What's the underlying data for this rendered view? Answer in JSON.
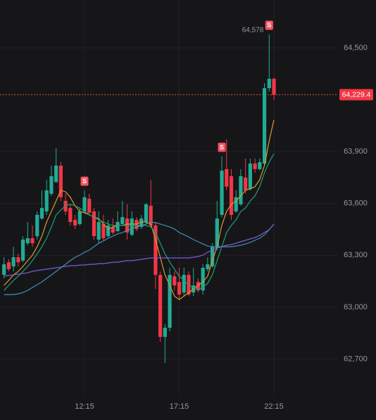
{
  "chart_data": {
    "type": "candlestick",
    "categories": [
      null,
      null,
      null,
      null,
      null,
      null,
      null,
      null,
      null,
      null,
      null,
      null,
      null,
      null,
      null,
      null,
      null,
      "12:15",
      null,
      null,
      null,
      null,
      null,
      null,
      null,
      null,
      null,
      null,
      null,
      null,
      null,
      null,
      null,
      null,
      null,
      null,
      null,
      "17:15",
      null,
      null,
      null,
      null,
      null,
      null,
      null,
      null,
      null,
      null,
      null,
      null,
      null,
      null,
      null,
      null,
      null,
      null,
      null,
      "22:15"
    ],
    "open": [
      63187,
      63260,
      63236,
      63289,
      63269,
      63370,
      63399,
      63411,
      63513,
      63554,
      63656,
      63725,
      63819,
      63615,
      63574,
      63505,
      63481,
      63554,
      63627,
      63554,
      63391,
      63481,
      63411,
      63464,
      63440,
      63481,
      63513,
      63419,
      63505,
      63464,
      63493,
      63587,
      63473,
      63187,
      62828,
      62881,
      63179,
      63146,
      63085,
      63187,
      63085,
      63146,
      63097,
      63220,
      63236,
      63342,
      63534,
      63799,
      63758,
      63554,
      63595,
      63750,
      63684,
      63831,
      63799,
      63831,
      64267,
      64321
    ],
    "high": [
      63289,
      63277,
      63350,
      63309,
      63411,
      63493,
      63473,
      63554,
      63676,
      63737,
      63819,
      63921,
      63839,
      63656,
      63595,
      63534,
      63574,
      63676,
      63656,
      63574,
      63554,
      63534,
      63505,
      63513,
      63554,
      63615,
      63595,
      63554,
      63521,
      63534,
      63603,
      63737,
      63493,
      63207,
      62902,
      63228,
      63207,
      63228,
      63228,
      63207,
      63228,
      63167,
      63248,
      63289,
      63370,
      63615,
      63872,
      63970,
      63799,
      63676,
      63799,
      63860,
      63860,
      63860,
      63860,
      64296,
      64578,
      64329
    ],
    "low": [
      63167,
      63207,
      63207,
      63236,
      63260,
      63358,
      63350,
      63391,
      63505,
      63534,
      63644,
      63717,
      63615,
      63534,
      63473,
      63452,
      63473,
      63546,
      63534,
      63391,
      63370,
      63383,
      63399,
      63419,
      63432,
      63473,
      63391,
      63411,
      63440,
      63452,
      63481,
      63464,
      63105,
      62800,
      62677,
      62861,
      63097,
      63044,
      63064,
      63064,
      63064,
      63085,
      63073,
      63207,
      63228,
      63330,
      63521,
      63676,
      63505,
      63546,
      63587,
      63656,
      63676,
      63778,
      63790,
      63819,
      64247,
      64198
    ],
    "close": [
      63248,
      63220,
      63289,
      63260,
      63391,
      63399,
      63370,
      63534,
      63574,
      63676,
      63758,
      63819,
      63636,
      63554,
      63493,
      63473,
      63554,
      63636,
      63546,
      63411,
      63493,
      63399,
      63473,
      63432,
      63493,
      63521,
      63432,
      63513,
      63452,
      63513,
      63595,
      63473,
      63187,
      62828,
      62881,
      63187,
      63126,
      63073,
      63187,
      63073,
      63126,
      63097,
      63228,
      63248,
      63350,
      63513,
      63790,
      63697,
      63534,
      63636,
      63758,
      63676,
      63831,
      63799,
      63839,
      64267,
      64321,
      64229.4
    ],
    "up_color": "#22ab94",
    "down_color": "#f23645",
    "high_value_labels": [
      null,
      null,
      null,
      null,
      null,
      null,
      null,
      null,
      null,
      null,
      null,
      null,
      null,
      null,
      null,
      null,
      null,
      null,
      null,
      null,
      null,
      null,
      null,
      null,
      null,
      null,
      null,
      null,
      null,
      null,
      null,
      null,
      null,
      null,
      null,
      null,
      null,
      null,
      null,
      null,
      null,
      null,
      null,
      null,
      null,
      null,
      null,
      null,
      null,
      null,
      null,
      null,
      null,
      null,
      null,
      null,
      "64,578",
      null
    ],
    "signal_labels": [
      null,
      null,
      null,
      null,
      null,
      null,
      null,
      null,
      null,
      null,
      null,
      null,
      null,
      null,
      null,
      null,
      null,
      "S",
      null,
      null,
      null,
      null,
      null,
      null,
      null,
      null,
      null,
      null,
      null,
      null,
      null,
      null,
      null,
      null,
      null,
      null,
      null,
      null,
      null,
      null,
      null,
      null,
      null,
      null,
      null,
      null,
      "S",
      null,
      null,
      null,
      null,
      null,
      null,
      null,
      null,
      null,
      "S",
      null
    ],
    "last_price": 64229.4,
    "last_price_label": "64,229.4",
    "lines": [
      {
        "color": "#d99a2b",
        "values": [
          63126,
          63155,
          63187,
          63207,
          63236,
          63269,
          63301,
          63350,
          63411,
          63493,
          63554,
          63615,
          63676,
          63668,
          63636,
          63587,
          63554,
          63546,
          63534,
          63521,
          63513,
          63481,
          63452,
          63464,
          63473,
          63473,
          63481,
          63481,
          63481,
          63493,
          63493,
          63481,
          63391,
          63289,
          63187,
          63126,
          63064,
          63044,
          63064,
          63085,
          63105,
          63126,
          63146,
          63179,
          63269,
          63350,
          63473,
          63554,
          63595,
          63615,
          63644,
          63676,
          63684,
          63697,
          63737,
          63819,
          63962,
          64084
        ]
      },
      {
        "color": "#1f9e78",
        "values": [
          63097,
          63126,
          63155,
          63179,
          63207,
          63236,
          63269,
          63309,
          63350,
          63399,
          63464,
          63534,
          63562,
          63587,
          63595,
          63587,
          63574,
          63554,
          63534,
          63521,
          63505,
          63493,
          63481,
          63473,
          63473,
          63473,
          63473,
          63473,
          63473,
          63473,
          63473,
          63464,
          63432,
          63370,
          63309,
          63260,
          63220,
          63179,
          63155,
          63126,
          63114,
          63105,
          63114,
          63138,
          63187,
          63269,
          63350,
          63432,
          63473,
          63505,
          63554,
          63574,
          63615,
          63644,
          63697,
          63778,
          63839,
          63888
        ]
      },
      {
        "color": "#3f8fb5",
        "values": [
          63073,
          63073,
          63073,
          63077,
          63085,
          63097,
          63114,
          63130,
          63146,
          63167,
          63187,
          63207,
          63228,
          63248,
          63269,
          63289,
          63301,
          63318,
          63330,
          63350,
          63370,
          63383,
          63399,
          63411,
          63424,
          63432,
          63444,
          63456,
          63464,
          63473,
          63481,
          63493,
          63489,
          63481,
          63473,
          63464,
          63452,
          63432,
          63419,
          63407,
          63391,
          63379,
          63366,
          63354,
          63350,
          63350,
          63350,
          63350,
          63350,
          63354,
          63358,
          63366,
          63375,
          63387,
          63399,
          63419,
          63448,
          63481
        ]
      },
      {
        "color": "#7d5bd8",
        "values": [
          63179,
          63183,
          63187,
          63191,
          63195,
          63199,
          63207,
          63212,
          63216,
          63220,
          63224,
          63228,
          63232,
          63236,
          63240,
          63240,
          63244,
          63244,
          63248,
          63248,
          63252,
          63252,
          63256,
          63260,
          63260,
          63265,
          63269,
          63269,
          63273,
          63277,
          63281,
          63285,
          63285,
          63285,
          63285,
          63285,
          63285,
          63285,
          63285,
          63285,
          63289,
          63293,
          63301,
          63318,
          63330,
          63342,
          63350,
          63358,
          63362,
          63370,
          63379,
          63387,
          63395,
          63403,
          63415,
          63432,
          63448,
          63481
        ]
      }
    ],
    "ylim": [
      62482,
      64777
    ],
    "yticks": [
      {
        "value": 62700,
        "label": "62,700"
      },
      {
        "value": 63000,
        "label": "63,000"
      },
      {
        "value": 63300,
        "label": "63,300"
      },
      {
        "value": 63600,
        "label": "63,600"
      },
      {
        "value": 63900,
        "label": "63,900"
      },
      {
        "value": 64500,
        "label": "64,500"
      }
    ],
    "grid": true
  }
}
